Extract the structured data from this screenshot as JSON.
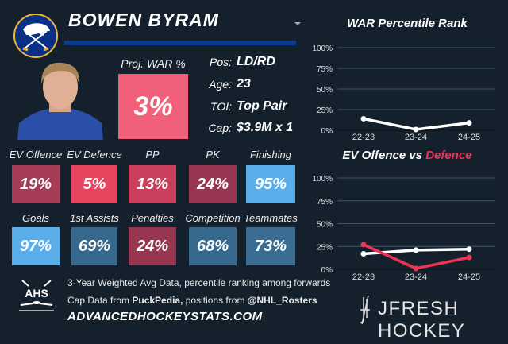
{
  "player": {
    "name": "BOWEN BYRAM",
    "team_logo": "buffalo-sabres-logo"
  },
  "proj_war": {
    "label": "Proj. WAR %",
    "value": "3%",
    "color": "#f0607a"
  },
  "info": [
    {
      "label": "Pos:",
      "value": "LD/RD"
    },
    {
      "label": "Age:",
      "value": "23"
    },
    {
      "label": "TOI:",
      "value": "Top Pair"
    },
    {
      "label": "Cap:",
      "value": "$3.9M x 1"
    }
  ],
  "tiles": [
    {
      "label": "EV Offence",
      "value": "19%",
      "color": "#a63d57"
    },
    {
      "label": "EV Defence",
      "value": "5%",
      "color": "#e6455f"
    },
    {
      "label": "PP",
      "value": "13%",
      "color": "#c8405b"
    },
    {
      "label": "PK",
      "value": "24%",
      "color": "#963650"
    },
    {
      "label": "Finishing",
      "value": "95%",
      "color": "#5aaeea"
    },
    {
      "label": "Goals",
      "value": "97%",
      "color": "#5aaeea"
    },
    {
      "label": "1st Assists",
      "value": "69%",
      "color": "#36698d"
    },
    {
      "label": "Penalties",
      "value": "24%",
      "color": "#963650"
    },
    {
      "label": "Competition",
      "value": "68%",
      "color": "#36698d"
    },
    {
      "label": "Teammates",
      "value": "73%",
      "color": "#3a6d91"
    }
  ],
  "footer": {
    "line1": "3-Year Weighted Avg Data, percentile ranking among forwards",
    "line2_a": "Cap Data from ",
    "line2_b": "PuckPedia,",
    "line2_c": " positions from ",
    "line2_d": "@NHL_Rosters",
    "line3": "ADVANCEDHOCKEYSTATS.COM",
    "ahs_logo": "AHS",
    "brand": "JFRESH HOCKEY"
  },
  "chart_data": [
    {
      "type": "line",
      "title": "WAR Percentile Rank",
      "categories": [
        "22-23",
        "23-24",
        "24-25"
      ],
      "ylim": [
        0,
        100
      ],
      "yticks": [
        "0%",
        "25%",
        "50%",
        "75%",
        "100%"
      ],
      "grid": true,
      "series": [
        {
          "values": [
            14,
            1,
            9
          ],
          "color": "#ffffff"
        }
      ]
    },
    {
      "type": "line",
      "title_a": "EV Offence vs ",
      "title_b": "Defence",
      "categories": [
        "22-23",
        "23-24",
        "24-25"
      ],
      "ylim": [
        0,
        100
      ],
      "yticks": [
        "0%",
        "25%",
        "50%",
        "75%",
        "100%"
      ],
      "grid": true,
      "series": [
        {
          "values": [
            17,
            21,
            22
          ],
          "color": "#ffffff"
        },
        {
          "values": [
            27,
            1,
            13
          ],
          "color": "#ee3355"
        }
      ]
    }
  ]
}
